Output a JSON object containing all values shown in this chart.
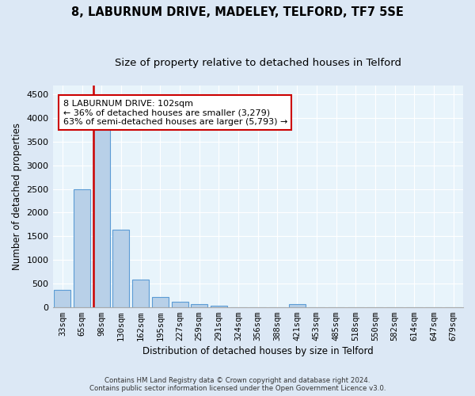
{
  "title": "8, LABURNUM DRIVE, MADELEY, TELFORD, TF7 5SE",
  "subtitle": "Size of property relative to detached houses in Telford",
  "xlabel": "Distribution of detached houses by size in Telford",
  "ylabel": "Number of detached properties",
  "categories": [
    "33sqm",
    "65sqm",
    "98sqm",
    "130sqm",
    "162sqm",
    "195sqm",
    "227sqm",
    "259sqm",
    "291sqm",
    "324sqm",
    "356sqm",
    "388sqm",
    "421sqm",
    "453sqm",
    "485sqm",
    "518sqm",
    "550sqm",
    "582sqm",
    "614sqm",
    "647sqm",
    "679sqm"
  ],
  "values": [
    370,
    2500,
    3750,
    1640,
    590,
    220,
    105,
    60,
    35,
    0,
    0,
    0,
    55,
    0,
    0,
    0,
    0,
    0,
    0,
    0,
    0
  ],
  "bar_color": "#b8d0e8",
  "bar_edge_color": "#5b9bd5",
  "property_line_color": "#cc0000",
  "property_line_bar_index": 2,
  "annotation_line1": "8 LABURNUM DRIVE: 102sqm",
  "annotation_line2": "← 36% of detached houses are smaller (3,279)",
  "annotation_line3": "63% of semi-detached houses are larger (5,793) →",
  "annotation_box_color": "#cc0000",
  "ylim": [
    0,
    4700
  ],
  "yticks": [
    0,
    500,
    1000,
    1500,
    2000,
    2500,
    3000,
    3500,
    4000,
    4500
  ],
  "footer_line1": "Contains HM Land Registry data © Crown copyright and database right 2024.",
  "footer_line2": "Contains public sector information licensed under the Open Government Licence v3.0.",
  "background_color": "#dce8f5",
  "plot_bg_color": "#e8f4fb",
  "title_fontsize": 10.5,
  "subtitle_fontsize": 9.5,
  "tick_fontsize": 7.5
}
